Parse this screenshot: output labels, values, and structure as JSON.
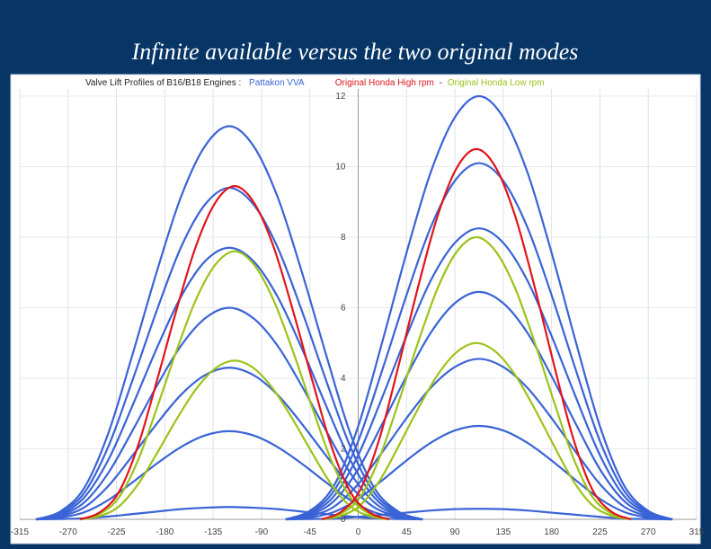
{
  "slide_title": "Infinite available versus the two original modes",
  "chart_data": {
    "type": "line",
    "title": "Valve Lift Profiles of B16/B18 Engines :",
    "separator": "-",
    "xlim": [
      -315,
      315
    ],
    "xticks": [
      -315,
      -270,
      -225,
      -180,
      -135,
      -90,
      -45,
      0,
      45,
      90,
      135,
      180,
      225,
      270,
      315
    ],
    "ylim": [
      0,
      12
    ],
    "yticks": [
      0,
      2,
      4,
      6,
      8,
      10,
      12
    ],
    "grid": true,
    "series": [
      {
        "name": "Pattakon VVA",
        "color": "#3a63d6",
        "curves": [
          {
            "x": [
              -300,
              -277.5,
              -255,
              -232.5,
              -210,
              -187.5,
              -165,
              -142.5,
              -120,
              -97.5,
              -75,
              -52.5,
              -30,
              -7.5,
              15,
              37.5,
              60
            ],
            "values": [
              0,
              0.22,
              0.89,
              2.45,
              4.68,
              7.02,
              9.14,
              10.59,
              11.15,
              10.59,
              9.14,
              7.02,
              4.68,
              2.45,
              0.89,
              0.22,
              0
            ]
          },
          {
            "x": [
              -300,
              -277.5,
              -255,
              -232.5,
              -210,
              -187.5,
              -165,
              -142.5,
              -120,
              -97.5,
              -75,
              -52.5,
              -30,
              -7.5,
              15,
              37.5,
              60
            ],
            "values": [
              0,
              0.19,
              0.75,
              2.07,
              3.95,
              5.92,
              7.71,
              8.93,
              9.4,
              8.93,
              7.71,
              5.92,
              3.95,
              2.07,
              0.75,
              0.19,
              0
            ]
          },
          {
            "x": [
              -300,
              -277.5,
              -255,
              -232.5,
              -210,
              -187.5,
              -165,
              -142.5,
              -120,
              -97.5,
              -75,
              -52.5,
              -30,
              -7.5,
              15,
              37.5,
              60
            ],
            "values": [
              0,
              0.15,
              0.62,
              1.69,
              3.23,
              4.85,
              6.31,
              7.32,
              7.7,
              7.32,
              6.31,
              4.85,
              3.23,
              1.69,
              0.62,
              0.15,
              0
            ]
          },
          {
            "x": [
              -300,
              -277.5,
              -255,
              -232.5,
              -210,
              -187.5,
              -165,
              -142.5,
              -120,
              -97.5,
              -75,
              -52.5,
              -30,
              -7.5,
              15,
              37.5,
              60
            ],
            "values": [
              0,
              0.12,
              0.48,
              1.32,
              2.52,
              3.78,
              4.92,
              5.7,
              6,
              5.7,
              4.92,
              3.78,
              2.52,
              1.32,
              0.48,
              0.12,
              0
            ]
          },
          {
            "x": [
              -300,
              -277.5,
              -255,
              -232.5,
              -210,
              -187.5,
              -165,
              -142.5,
              -120,
              -97.5,
              -75,
              -52.5,
              -30,
              -7.5,
              15,
              37.5,
              60
            ],
            "values": [
              0,
              0.09,
              0.34,
              0.95,
              1.81,
              2.71,
              3.53,
              4.09,
              4.3,
              4.09,
              3.53,
              2.71,
              1.81,
              0.95,
              0.34,
              0.09,
              0
            ]
          },
          {
            "x": [
              -300,
              -277.5,
              -255,
              -232.5,
              -210,
              -187.5,
              -165,
              -142.5,
              -120,
              -97.5,
              -75,
              -52.5,
              -30,
              -7.5,
              15,
              37.5,
              60
            ],
            "values": [
              0,
              0.05,
              0.2,
              0.55,
              1.05,
              1.58,
              2.05,
              2.38,
              2.5,
              2.38,
              2.05,
              1.58,
              1.05,
              0.55,
              0.2,
              0.05,
              0
            ]
          },
          {
            "x": [
              -300,
              -277.5,
              -255,
              -232.5,
              -210,
              -187.5,
              -165,
              -142.5,
              -120,
              -97.5,
              -75,
              -52.5,
              -30,
              -7.5,
              15,
              37.5,
              60
            ],
            "values": [
              0,
              0.01,
              0.03,
              0.08,
              0.15,
              0.22,
              0.29,
              0.33,
              0.35,
              0.33,
              0.29,
              0.22,
              0.15,
              0.08,
              0.03,
              0.01,
              0
            ]
          },
          {
            "x": [
              -67.5,
              -45,
              -22.5,
              0,
              22.5,
              45,
              67.5,
              90,
              112.5,
              135,
              157.5,
              180,
              202.5,
              225,
              247.5,
              270,
              292.5
            ],
            "values": [
              0,
              0.24,
              0.96,
              2.64,
              5.04,
              7.56,
              9.84,
              11.4,
              12,
              11.4,
              9.84,
              7.56,
              5.04,
              2.64,
              0.96,
              0.24,
              0
            ]
          },
          {
            "x": [
              -67.5,
              -45,
              -22.5,
              0,
              22.5,
              45,
              67.5,
              90,
              112.5,
              135,
              157.5,
              180,
              202.5,
              225,
              247.5,
              270,
              292.5
            ],
            "values": [
              0,
              0.2,
              0.81,
              2.22,
              4.24,
              6.36,
              8.28,
              9.6,
              10.1,
              9.6,
              8.28,
              6.36,
              4.24,
              2.22,
              0.81,
              0.2,
              0
            ]
          },
          {
            "x": [
              -67.5,
              -45,
              -22.5,
              0,
              22.5,
              45,
              67.5,
              90,
              112.5,
              135,
              157.5,
              180,
              202.5,
              225,
              247.5,
              270,
              292.5
            ],
            "values": [
              0,
              0.17,
              0.66,
              1.82,
              3.47,
              5.2,
              6.77,
              7.84,
              8.25,
              7.84,
              6.77,
              5.2,
              3.47,
              1.82,
              0.66,
              0.17,
              0
            ]
          },
          {
            "x": [
              -67.5,
              -45,
              -22.5,
              0,
              22.5,
              45,
              67.5,
              90,
              112.5,
              135,
              157.5,
              180,
              202.5,
              225,
              247.5,
              270,
              292.5
            ],
            "values": [
              0,
              0.13,
              0.52,
              1.42,
              2.71,
              4.06,
              5.29,
              6.13,
              6.45,
              6.13,
              5.29,
              4.06,
              2.71,
              1.42,
              0.52,
              0.13,
              0
            ]
          },
          {
            "x": [
              -67.5,
              -45,
              -22.5,
              0,
              22.5,
              45,
              67.5,
              90,
              112.5,
              135,
              157.5,
              180,
              202.5,
              225,
              247.5,
              270,
              292.5
            ],
            "values": [
              0,
              0.09,
              0.36,
              1,
              1.91,
              2.87,
              3.73,
              4.32,
              4.55,
              4.32,
              3.73,
              2.87,
              1.91,
              1,
              0.36,
              0.09,
              0
            ]
          },
          {
            "x": [
              -67.5,
              -45,
              -22.5,
              0,
              22.5,
              45,
              67.5,
              90,
              112.5,
              135,
              157.5,
              180,
              202.5,
              225,
              247.5,
              270,
              292.5
            ],
            "values": [
              0,
              0.05,
              0.21,
              0.58,
              1.11,
              1.67,
              2.17,
              2.52,
              2.65,
              2.52,
              2.17,
              1.67,
              1.11,
              0.58,
              0.21,
              0.05,
              0
            ]
          },
          {
            "x": [
              -67.5,
              -45,
              -22.5,
              0,
              22.5,
              45,
              67.5,
              90,
              112.5,
              135,
              157.5,
              180,
              202.5,
              225,
              247.5,
              270,
              292.5
            ],
            "values": [
              0,
              0.01,
              0.02,
              0.07,
              0.13,
              0.19,
              0.25,
              0.29,
              0.3,
              0.29,
              0.25,
              0.19,
              0.13,
              0.07,
              0.02,
              0.01,
              0
            ]
          }
        ]
      },
      {
        "name": "Original Honda Low rpm",
        "color": "#9cc319",
        "curves": [
          {
            "x": [
              -259,
              -241,
              -223,
              -205,
              -187,
              -169,
              -151,
              -133,
              -115,
              -97,
              -79,
              -61,
              -43,
              -25,
              -7,
              11,
              29
            ],
            "values": [
              0,
              0.15,
              0.61,
              1.67,
              3.19,
              4.79,
              6.23,
              7.22,
              7.6,
              7.22,
              6.23,
              4.79,
              3.19,
              1.67,
              0.61,
              0.15,
              0
            ]
          },
          {
            "x": [
              -259,
              -241,
              -223,
              -205,
              -187,
              -169,
              -151,
              -133,
              -115,
              -97,
              -79,
              -61,
              -43,
              -25,
              -7,
              11,
              29
            ],
            "values": [
              0,
              0.09,
              0.36,
              0.99,
              1.89,
              2.84,
              3.69,
              4.28,
              4.5,
              4.28,
              3.69,
              2.84,
              1.89,
              0.99,
              0.36,
              0.09,
              0
            ]
          },
          {
            "x": [
              -34,
              -16,
              2,
              20,
              38,
              56,
              74,
              92,
              110,
              128,
              146,
              164,
              182,
              200,
              218,
              236,
              254
            ],
            "values": [
              0,
              0.16,
              0.64,
              1.76,
              3.36,
              5.04,
              6.56,
              7.6,
              8,
              7.6,
              6.56,
              5.04,
              3.36,
              1.76,
              0.64,
              0.16,
              0
            ]
          },
          {
            "x": [
              -34,
              -16,
              2,
              20,
              38,
              56,
              74,
              92,
              110,
              128,
              146,
              164,
              182,
              200,
              218,
              236,
              254
            ],
            "values": [
              0,
              0.1,
              0.4,
              1.1,
              2.1,
              3.15,
              4.1,
              4.75,
              5,
              4.75,
              4.1,
              3.15,
              2.1,
              1.1,
              0.4,
              0.1,
              0
            ]
          }
        ]
      },
      {
        "name": "Original Honda High rpm",
        "color": "#e0141c",
        "curves": [
          {
            "x": [
              -259,
              -241,
              -223,
              -205,
              -187,
              -169,
              -151,
              -133,
              -115,
              -97,
              -79,
              -61,
              -43,
              -25,
              -7,
              11,
              29
            ],
            "values": [
              0,
              0.19,
              0.76,
              2.08,
              3.97,
              5.95,
              7.75,
              8.98,
              9.45,
              8.98,
              7.75,
              5.95,
              3.97,
              2.08,
              0.76,
              0.19,
              0
            ]
          },
          {
            "x": [
              -34,
              -16,
              2,
              20,
              38,
              56,
              74,
              92,
              110,
              128,
              146,
              164,
              182,
              200,
              218,
              236,
              254
            ],
            "values": [
              0,
              0.21,
              0.84,
              2.31,
              4.41,
              6.62,
              8.61,
              9.98,
              10.5,
              9.98,
              8.61,
              6.62,
              4.41,
              2.31,
              0.84,
              0.21,
              0
            ]
          }
        ]
      }
    ]
  }
}
